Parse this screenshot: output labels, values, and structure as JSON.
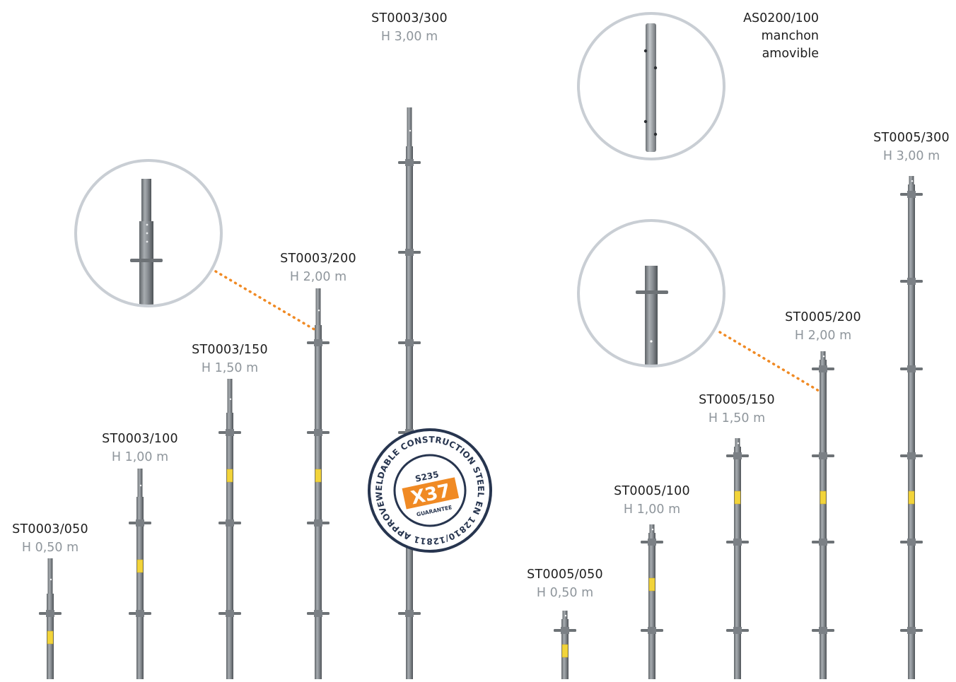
{
  "products": [
    {
      "code": "ST0003/050",
      "height": "H 0,50 m"
    },
    {
      "code": "ST0003/100",
      "height": "H 1,00 m"
    },
    {
      "code": "ST0003/150",
      "height": "H 1,50 m"
    },
    {
      "code": "ST0003/200",
      "height": "H 2,00 m"
    },
    {
      "code": "ST0003/300",
      "height": "H 3,00 m"
    },
    {
      "code": "ST0005/050",
      "height": "H 0,50 m"
    },
    {
      "code": "ST0005/100",
      "height": "H 1,00 m"
    },
    {
      "code": "ST0005/150",
      "height": "H 1,50 m"
    },
    {
      "code": "ST0005/200",
      "height": "H 2,00 m"
    },
    {
      "code": "ST0005/300",
      "height": "H 3,00 m"
    }
  ],
  "sleeve": {
    "code": "AS0200/100",
    "line1": "manchon",
    "line2": "amovible"
  },
  "badge": {
    "ring_text": "WELDABLE CONSTRUCTION STEEL EN 12810/12811 APPROVED",
    "grade": "S235",
    "mark": "X37",
    "sub": "GUARANTEE"
  },
  "colors": {
    "accent": "#f08a24",
    "badge_navy": "#27354f",
    "pole": "#8a8f94",
    "circle_border": "#c9ced4",
    "height_text": "#8f969c"
  }
}
